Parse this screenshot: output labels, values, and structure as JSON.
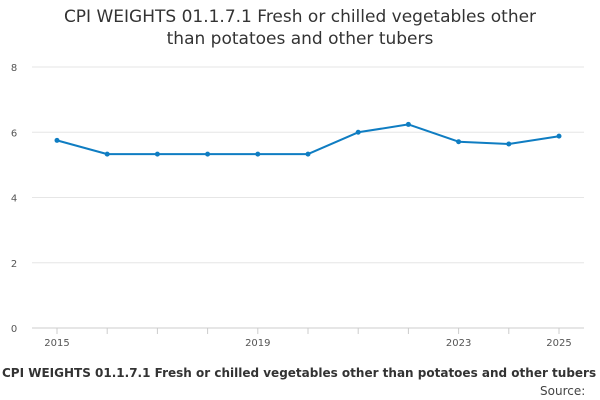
{
  "chart_data": {
    "type": "line",
    "title": "CPI WEIGHTS 01.1.7.1 Fresh or chilled vegetables other than potatoes and other tubers",
    "xlabel": "",
    "ylabel": "",
    "x": [
      2015,
      2016,
      2017,
      2018,
      2019,
      2020,
      2021,
      2022,
      2023,
      2024,
      2025
    ],
    "x_tick_labels": [
      "2015",
      "2019",
      "2023",
      "2025"
    ],
    "x_tick_values": [
      2015,
      2019,
      2023,
      2025
    ],
    "y_ticks": [
      0,
      2,
      4,
      6,
      8
    ],
    "ylim": [
      0,
      8
    ],
    "xlim": [
      2015,
      2025
    ],
    "grid": true,
    "series": [
      {
        "values": [
          5.75,
          5.33,
          5.33,
          5.33,
          5.33,
          5.33,
          6.0,
          6.24,
          5.71,
          5.64,
          5.88
        ],
        "color": "#0f7dc2"
      }
    ]
  },
  "caption": "CPI WEIGHTS 01.1.7.1 Fresh or chilled vegetables other than potatoes and other tubers",
  "source_label": "Source:",
  "colors": {
    "line": "#0f7dc2",
    "grid": "#e6e6e6",
    "axis": "#cccccc"
  }
}
